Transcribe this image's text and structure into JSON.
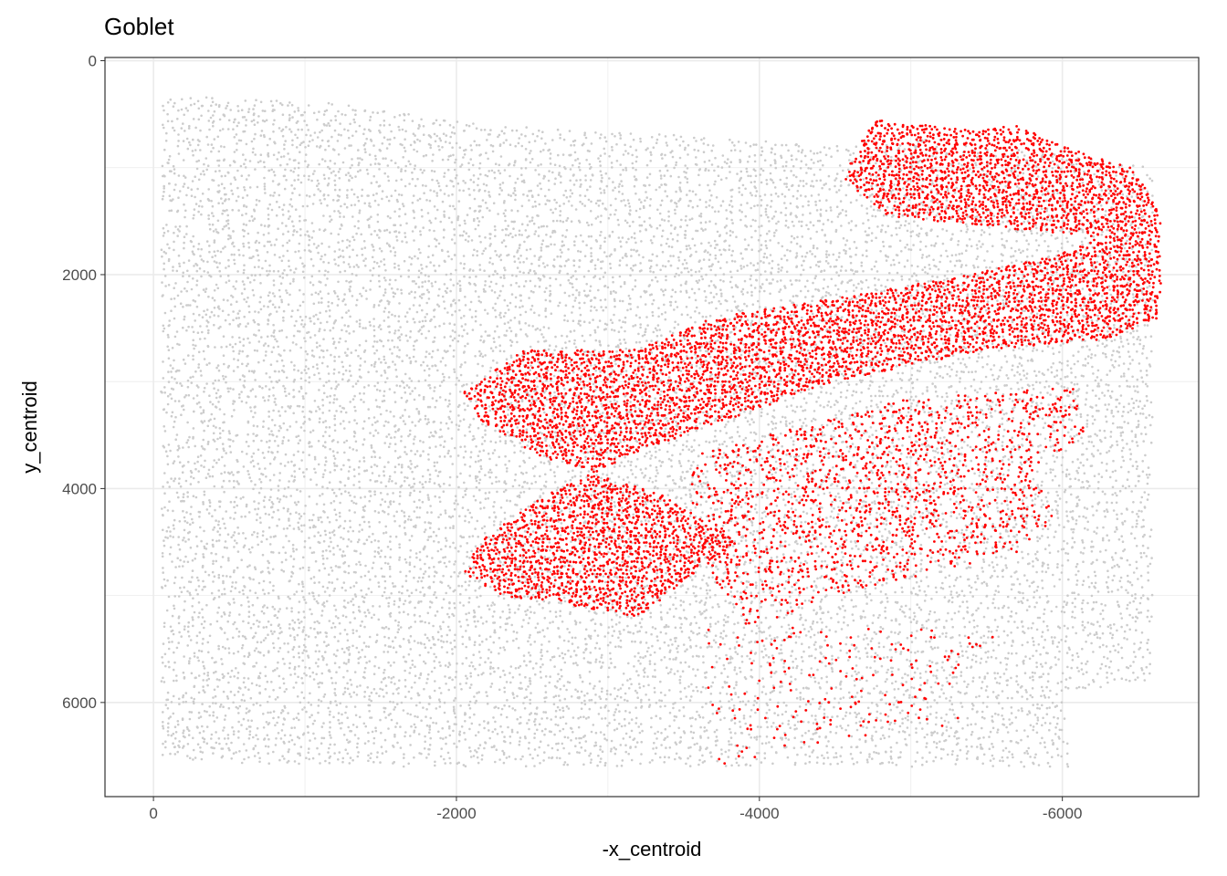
{
  "chart_data": {
    "type": "scatter",
    "title": "Goblet",
    "xlabel": "-x_centroid",
    "ylabel": "y_centroid",
    "x_ticks": [
      0,
      -2000,
      -4000,
      -6000
    ],
    "x_tick_labels": [
      "0",
      "-2000",
      "-4000",
      "-6000"
    ],
    "y_ticks": [
      0,
      2000,
      4000,
      6000
    ],
    "y_tick_labels": [
      "0",
      "2000",
      "4000",
      "6000"
    ],
    "xlim": [
      320,
      -6900
    ],
    "ylim": [
      6880,
      -30
    ],
    "y_reversed": true,
    "x_reversed": true,
    "grid": true,
    "legend": "none",
    "colors": {
      "other_cells": "#cccccc",
      "highlighted_cells": "#ff0000",
      "panel_border": "#333333",
      "grid": "#ebebeb"
    },
    "series": [
      {
        "role": "other cells",
        "color": "#cccccc",
        "regions": [
          {
            "shape": "polygon",
            "points": [
              [
                -50,
                300
              ],
              [
                -1200,
                400
              ],
              [
                -2200,
                600
              ],
              [
                -3500,
                700
              ],
              [
                -4500,
                800
              ],
              [
                -5000,
                700
              ],
              [
                -6600,
                1000
              ],
              [
                -6600,
                5800
              ],
              [
                -6000,
                5900
              ],
              [
                -6050,
                6600
              ],
              [
                -1500,
                6600
              ],
              [
                -200,
                6550
              ],
              [
                -50,
                6500
              ]
            ],
            "density": 0.6
          }
        ]
      },
      {
        "role": "highlighted cells",
        "color": "#ff0000",
        "regions": [
          {
            "shape": "polygon",
            "points": [
              [
                -4550,
                1100
              ],
              [
                -4750,
                550
              ],
              [
                -5400,
                650
              ],
              [
                -5700,
                600
              ],
              [
                -6000,
                800
              ],
              [
                -6450,
                1000
              ],
              [
                -6650,
                1400
              ],
              [
                -6650,
                2400
              ],
              [
                -6300,
                2600
              ],
              [
                -5500,
                2700
              ],
              [
                -4500,
                3000
              ],
              [
                -3800,
                3350
              ],
              [
                -3300,
                3600
              ],
              [
                -2600,
                4050
              ],
              [
                -2150,
                4500
              ],
              [
                -2050,
                4800
              ],
              [
                -2300,
                5000
              ],
              [
                -2800,
                5100
              ],
              [
                -3200,
                5200
              ],
              [
                -3850,
                4500
              ],
              [
                -3350,
                4050
              ],
              [
                -2550,
                3700
              ],
              [
                -2150,
                3350
              ],
              [
                -2050,
                3100
              ],
              [
                -2450,
                2700
              ],
              [
                -3200,
                2700
              ],
              [
                -3700,
                2400
              ],
              [
                -4600,
                2200
              ],
              [
                -5400,
                2000
              ],
              [
                -6000,
                1800
              ],
              [
                -6250,
                1650
              ],
              [
                -5500,
                1550
              ],
              [
                -4850,
                1450
              ]
            ],
            "density": 0.9
          },
          {
            "shape": "polygon",
            "points": [
              [
                -3550,
                3700
              ],
              [
                -4300,
                3400
              ],
              [
                -5000,
                3150
              ],
              [
                -6100,
                3050
              ],
              [
                -6150,
                3500
              ],
              [
                -5800,
                3800
              ],
              [
                -5950,
                4300
              ],
              [
                -5700,
                4600
              ],
              [
                -5100,
                4800
              ],
              [
                -4500,
                5000
              ],
              [
                -4150,
                5200
              ],
              [
                -3900,
                5300
              ],
              [
                -3700,
                4850
              ],
              [
                -3550,
                4300
              ]
            ],
            "density": 0.35
          },
          {
            "shape": "polygon",
            "points": [
              [
                -3600,
                5300
              ],
              [
                -5600,
                5300
              ],
              [
                -5300,
                6200
              ],
              [
                -3700,
                6600
              ]
            ],
            "density": 0.08
          }
        ]
      }
    ]
  }
}
